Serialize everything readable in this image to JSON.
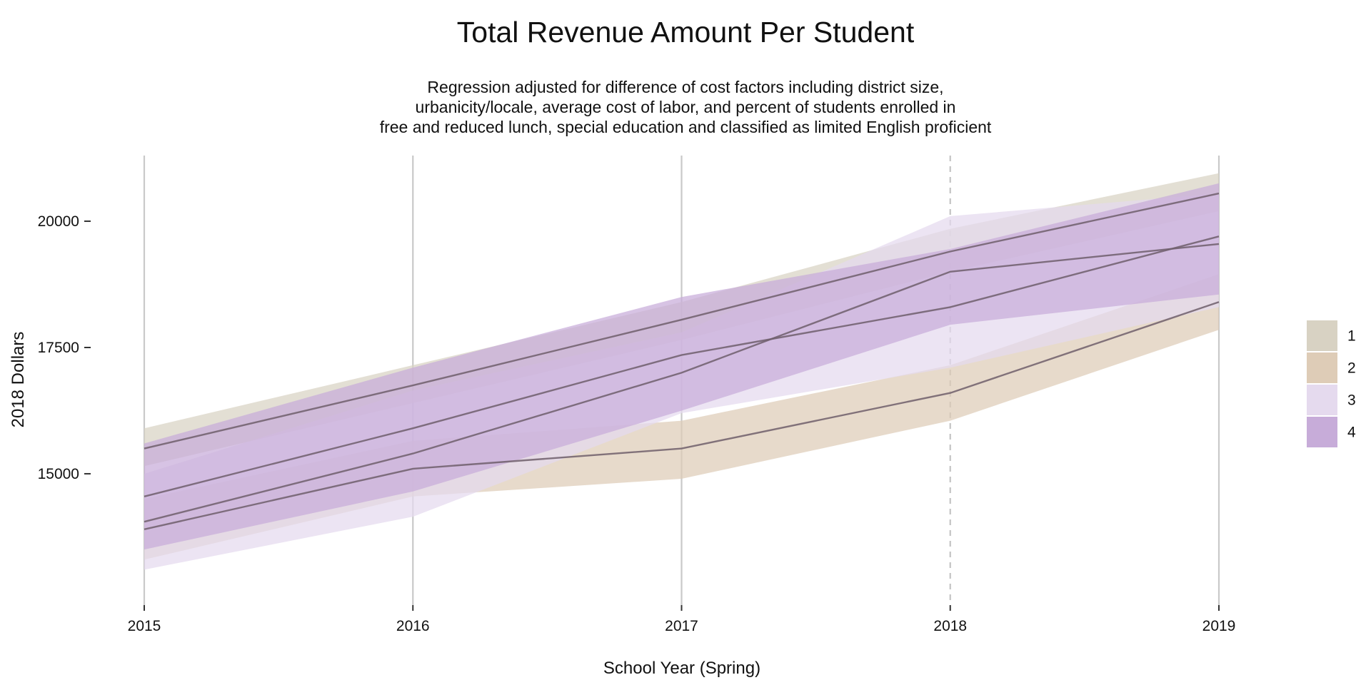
{
  "chart_data": {
    "type": "line",
    "title": "Total Revenue Amount Per Student",
    "subtitle": [
      "Regression adjusted for difference of cost factors including district size,",
      "urbanicity/locale, average cost of labor, and percent of students enrolled in",
      "free and reduced lunch, special education and classified as limited English proficient"
    ],
    "xlabel": "School Year (Spring)",
    "ylabel": "2018 Dollars",
    "x": [
      2015,
      2016,
      2017,
      2018,
      2019
    ],
    "xlim": [
      2015,
      2019
    ],
    "ylim": [
      12400,
      21300
    ],
    "yticks": [
      15000,
      17500,
      20000
    ],
    "ytick_labels": [
      "15000",
      "17500",
      "20000"
    ],
    "dashed_vline_x": 2018,
    "grid": "vertical lines at each year",
    "legend_position": "right",
    "series": [
      {
        "name": "1",
        "color": "#d8d2c3",
        "values": [
          15500,
          16750,
          18050,
          19400,
          20550
        ],
        "lower": [
          15150,
          16400,
          17650,
          19000,
          20200
        ],
        "upper": [
          15900,
          17150,
          18400,
          19850,
          20950
        ]
      },
      {
        "name": "2",
        "color": "#deccb7",
        "values": [
          13900,
          15100,
          15500,
          16600,
          18400
        ],
        "lower": [
          13300,
          14550,
          14900,
          16050,
          17850
        ],
        "upper": [
          14500,
          15650,
          16050,
          17150,
          18950
        ]
      },
      {
        "name": "3",
        "color": "#e5daee",
        "values": [
          14050,
          15400,
          17000,
          19000,
          19550
        ],
        "lower": [
          13100,
          14150,
          16200,
          17100,
          18300
        ],
        "upper": [
          15000,
          16650,
          17800,
          20100,
          20550
        ]
      },
      {
        "name": "4",
        "color": "#c7acd9",
        "values": [
          14550,
          15900,
          17350,
          18300,
          19700
        ],
        "lower": [
          13500,
          14650,
          16250,
          17950,
          18550
        ],
        "upper": [
          15600,
          17100,
          18500,
          19450,
          20750
        ]
      }
    ]
  }
}
